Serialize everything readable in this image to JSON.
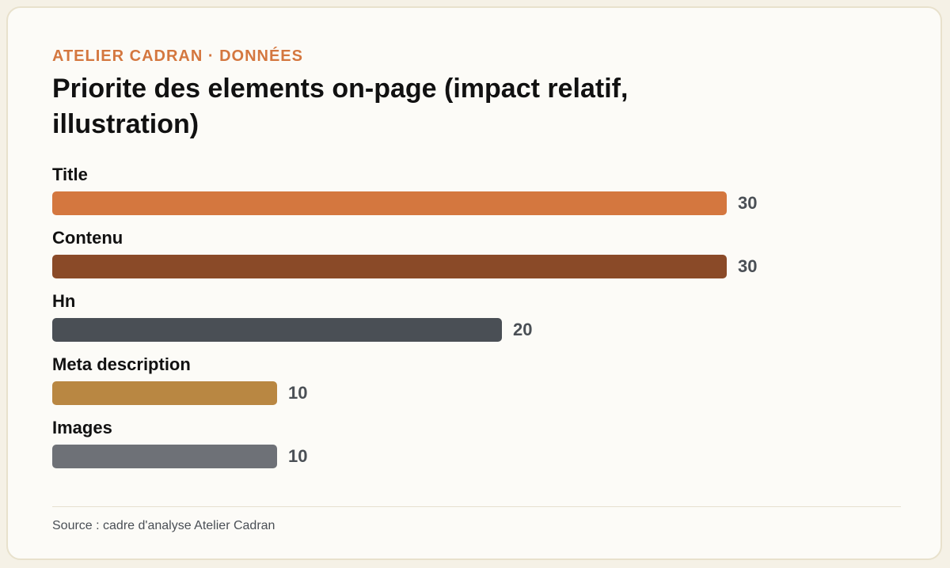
{
  "header": {
    "eyebrow": "ATELIER CADRAN · DONNÉES",
    "title": "Priorite des elements on-page (impact relatif, illustration)"
  },
  "footer": {
    "source": "Source : cadre d'analyse Atelier Cadran"
  },
  "chart_data": {
    "type": "bar",
    "orientation": "horizontal",
    "categories": [
      "Title",
      "Contenu",
      "Hn",
      "Meta description",
      "Images"
    ],
    "values": [
      30,
      30,
      20,
      10,
      10
    ],
    "colors": [
      "#d4773f",
      "#8a4a28",
      "#4a4f55",
      "#b98742",
      "#6e7177"
    ],
    "title": "Priorite des elements on-page (impact relatif, illustration)",
    "xlabel": "",
    "ylabel": "",
    "xlim": [
      0,
      30
    ],
    "grid": false,
    "legend": "none"
  }
}
